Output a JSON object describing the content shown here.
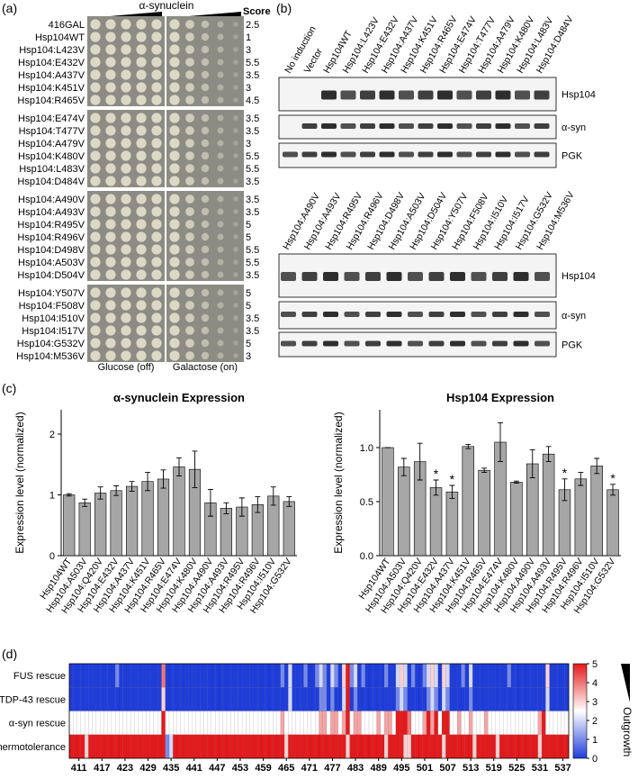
{
  "panel_a": {
    "label": "(a)",
    "title": "α-synuclein",
    "score_header": "Score",
    "conditions": [
      "Glucose (off)",
      "Galactose (on)"
    ],
    "strain_groups": [
      [
        {
          "name": "416GAL",
          "score": 2.5
        },
        {
          "name": "Hsp104WT",
          "score": 1
        },
        {
          "name": "Hsp104:L423V",
          "score": 3
        },
        {
          "name": "Hsp104:E432V",
          "score": 5.5
        },
        {
          "name": "Hsp104:A437V",
          "score": 3.5
        },
        {
          "name": "Hsp104:K451V",
          "score": 3
        },
        {
          "name": "Hsp104:R465V",
          "score": 4.5
        }
      ],
      [
        {
          "name": "Hsp104:E474V",
          "score": 3.5
        },
        {
          "name": "Hsp104:T477V",
          "score": 3.5
        },
        {
          "name": "Hsp104:A479V",
          "score": 3
        },
        {
          "name": "Hsp104:K480V",
          "score": 5.5
        },
        {
          "name": "Hsp104:L483V",
          "score": 5.5
        },
        {
          "name": "Hsp104:D484V",
          "score": 3.5
        }
      ],
      [
        {
          "name": "Hsp104:A490V",
          "score": 3.5
        },
        {
          "name": "Hsp104:A493V",
          "score": 3.5
        },
        {
          "name": "Hsp104:R495V",
          "score": 5
        },
        {
          "name": "Hsp104:R496V",
          "score": 5
        },
        {
          "name": "Hsp104:D498V",
          "score": 5.5
        },
        {
          "name": "Hsp104:A503V",
          "score": 5.5
        },
        {
          "name": "Hsp104:D504V",
          "score": 3.5
        }
      ],
      [
        {
          "name": "Hsp104:Y507V",
          "score": 5
        },
        {
          "name": "Hsp104:F508V",
          "score": 5
        },
        {
          "name": "Hsp104:I510V",
          "score": 3.5
        },
        {
          "name": "Hsp104:I517V",
          "score": 3.5
        },
        {
          "name": "Hsp104:G532V",
          "score": 5
        },
        {
          "name": "Hsp104:M536V",
          "score": 3
        }
      ]
    ]
  },
  "panel_b": {
    "label": "(b)",
    "blots": [
      {
        "lanes": [
          "No induction",
          "Vector",
          "Hsp104WT",
          "Hsp104:L423V",
          "Hsp104:E432V",
          "Hsp104:A437V",
          "Hsp104:K451V",
          "Hsp104:R465V",
          "Hsp104:E474V",
          "Hsp104:T477V",
          "Hsp104:A479V",
          "Hsp104:K480V",
          "Hsp104:L483V",
          "Hsp104:D484V"
        ],
        "bands": [
          "Hsp104",
          "α-syn",
          "PGK"
        ]
      },
      {
        "lanes": [
          "Hsp104:A490V",
          "Hsp104:A493V",
          "Hsp104:R495V",
          "Hsp104:R496V",
          "Hsp104:D498V",
          "Hsp104:A503V",
          "Hsp104:D504V",
          "Hsp104:Y507V",
          "Hsp104:F508V",
          "Hsp104:I510V",
          "Hsp104:I517V",
          "Hsp104:G532V",
          "Hsp104:M536V"
        ],
        "bands": [
          "Hsp104",
          "α-syn",
          "PGK"
        ]
      }
    ]
  },
  "panel_c_label": "(c)",
  "panel_d_label": "(d)",
  "chart_data": [
    {
      "type": "bar",
      "title": "α-synuclein Expression",
      "y_label": "Expression level (normalized)",
      "color": "#a6a6a6",
      "categories": [
        "Hsp104WT",
        "Hsp104:A503V",
        "Hsp104:Q420V",
        "Hsp104:E432V",
        "Hsp104:A437V",
        "Hsp104:K451V",
        "Hsp104:R465V",
        "Hsp104:E474V",
        "Hsp104:K480V",
        "Hsp104:A490V",
        "Hsp104:A493V",
        "Hsp104:R495V",
        "Hsp104:R496V",
        "Hsp104:I510V",
        "Hsp104:G532V"
      ],
      "values": [
        1.0,
        0.87,
        1.03,
        1.07,
        1.14,
        1.22,
        1.26,
        1.46,
        1.42,
        0.87,
        0.78,
        0.8,
        0.84,
        0.98,
        0.89
      ],
      "errors": [
        0.02,
        0.06,
        0.1,
        0.08,
        0.08,
        0.15,
        0.15,
        0.15,
        0.3,
        0.22,
        0.09,
        0.15,
        0.13,
        0.15,
        0.08
      ],
      "ylim": [
        0,
        2.4
      ],
      "yticks": [
        0,
        1,
        2
      ]
    },
    {
      "type": "bar",
      "title": "Hsp104 Expression",
      "y_label": "Expression level (normalized)",
      "color": "#a6a6a6",
      "categories": [
        "Hsp104WT",
        "Hsp104:A503V",
        "Hsp104:Q420V",
        "Hsp104:E432V",
        "Hsp104:A437V",
        "Hsp104:K451V",
        "Hsp104:R465V",
        "Hsp104:E474V",
        "Hsp104:K480V",
        "Hsp104:A490V",
        "Hsp104:A493V",
        "Hsp104:R495V",
        "Hsp104:R496V",
        "Hsp104:I510V",
        "Hsp104:G532V"
      ],
      "values": [
        1.0,
        0.82,
        0.87,
        0.63,
        0.59,
        1.01,
        0.79,
        1.05,
        0.68,
        0.85,
        0.94,
        0.61,
        0.71,
        0.83,
        0.61
      ],
      "errors": [
        0.0,
        0.08,
        0.17,
        0.07,
        0.06,
        0.02,
        0.02,
        0.18,
        0.01,
        0.13,
        0.07,
        0.1,
        0.06,
        0.07,
        0.05
      ],
      "annotations": [
        {
          "category": "Hsp104:E432V",
          "text": "*"
        },
        {
          "category": "Hsp104:A437V",
          "text": "*"
        },
        {
          "category": "Hsp104:R495V",
          "text": "*"
        },
        {
          "category": "Hsp104:G532V",
          "text": "*"
        }
      ],
      "ylim": [
        0,
        1.35
      ],
      "yticks": [
        {
          "value": 0,
          "label": "0.0"
        },
        {
          "value": 0.5,
          "label": "0.5"
        },
        {
          "value": 1,
          "label": "1.0"
        }
      ]
    },
    {
      "type": "heatmap",
      "rows": [
        "FUS rescue",
        "TDP-43 rescue",
        "α-syn rescue",
        "Thermotolerance"
      ],
      "x": [
        409,
        410,
        411,
        412,
        413,
        414,
        415,
        416,
        417,
        418,
        419,
        420,
        421,
        422,
        423,
        424,
        425,
        426,
        427,
        428,
        429,
        430,
        431,
        432,
        433,
        434,
        435,
        436,
        437,
        438,
        439,
        440,
        441,
        442,
        443,
        444,
        445,
        446,
        447,
        448,
        449,
        450,
        451,
        452,
        453,
        454,
        455,
        456,
        457,
        458,
        459,
        460,
        461,
        462,
        463,
        464,
        465,
        466,
        467,
        468,
        469,
        470,
        471,
        472,
        473,
        474,
        475,
        476,
        477,
        478,
        479,
        480,
        481,
        482,
        483,
        484,
        485,
        486,
        487,
        488,
        489,
        490,
        491,
        492,
        493,
        494,
        495,
        496,
        497,
        498,
        499,
        500,
        501,
        502,
        503,
        504,
        505,
        506,
        507,
        508,
        509,
        510,
        511,
        512,
        513,
        514,
        515,
        516,
        517,
        518,
        519,
        520,
        521,
        522,
        523,
        524,
        525,
        526,
        527,
        528,
        529,
        530,
        531,
        532,
        533,
        534,
        535,
        536,
        537,
        538
      ],
      "xlim": [
        408.5,
        538.5
      ],
      "xticks": [
        411,
        417,
        423,
        429,
        435,
        441,
        447,
        453,
        459,
        465,
        471,
        477,
        483,
        489,
        495,
        501,
        507,
        513,
        519,
        525,
        531,
        537
      ],
      "values": [
        [
          0,
          0,
          0,
          0,
          0,
          0,
          0,
          0,
          0,
          0,
          0,
          0,
          1,
          0,
          0,
          0,
          0,
          0,
          0,
          0,
          0,
          0,
          0,
          0,
          4,
          0,
          0,
          0,
          0,
          0,
          0,
          0,
          0,
          0,
          0,
          0,
          0,
          0,
          0,
          0,
          0,
          0,
          0,
          0,
          0,
          0,
          0,
          0,
          0,
          0,
          0,
          0,
          0,
          0,
          0,
          1,
          0,
          2,
          0,
          0,
          0,
          1,
          0,
          0,
          1,
          2,
          1,
          0,
          2,
          1,
          0,
          3,
          5,
          1,
          2,
          0,
          1,
          0,
          0,
          0,
          0,
          0,
          1,
          0,
          0,
          2,
          3,
          2,
          0,
          1,
          0,
          0,
          1,
          2,
          3,
          2,
          0,
          3,
          2,
          0,
          0,
          0,
          1,
          0,
          2,
          0,
          0,
          0,
          0,
          0,
          0,
          0,
          0,
          0,
          1,
          0,
          0,
          0,
          0,
          0,
          0,
          0,
          0,
          0,
          3,
          0,
          0,
          0,
          0,
          0
        ],
        [
          0,
          0,
          0,
          0,
          0,
          0,
          0,
          0,
          0,
          0,
          0,
          0,
          0,
          0,
          0,
          0,
          0,
          0,
          0,
          0,
          0,
          0,
          0,
          0,
          3,
          0,
          0,
          0,
          0,
          0,
          0,
          0,
          0,
          0,
          0,
          0,
          0,
          0,
          0,
          0,
          0,
          0,
          0,
          0,
          0,
          0,
          0,
          0,
          0,
          0,
          0,
          0,
          0,
          0,
          0,
          0,
          0,
          2,
          0,
          0,
          0,
          0,
          0,
          0,
          0,
          1,
          1,
          0,
          1,
          0,
          0,
          2,
          5,
          0,
          1,
          0,
          0,
          0,
          0,
          0,
          0,
          0,
          0,
          0,
          0,
          1,
          2,
          1,
          0,
          0,
          0,
          0,
          0,
          1,
          2,
          1,
          0,
          2,
          1,
          0,
          0,
          0,
          0,
          0,
          1,
          0,
          0,
          0,
          0,
          0,
          0,
          0,
          0,
          0,
          0,
          0,
          0,
          0,
          0,
          0,
          0,
          0,
          0,
          0,
          2,
          0,
          0,
          0,
          0,
          0
        ],
        [
          2.5,
          2.5,
          2.5,
          2.5,
          2.5,
          2.5,
          2.5,
          2.5,
          2.5,
          2.5,
          2.5,
          2.5,
          2.5,
          2.5,
          2.5,
          2.5,
          2.5,
          2.5,
          2.5,
          2.5,
          2.5,
          2.5,
          2.5,
          2.5,
          5,
          2.5,
          2.5,
          2.5,
          2.5,
          2.5,
          2.5,
          2.5,
          2.5,
          2.5,
          2.5,
          2.5,
          2.5,
          2.5,
          2.5,
          2.5,
          2.5,
          2.5,
          2.5,
          2.5,
          2.5,
          2.5,
          2.5,
          2.5,
          2.5,
          2.5,
          2.5,
          2.5,
          2.5,
          2.5,
          2.5,
          3.5,
          2.5,
          2.5,
          2.5,
          2.5,
          2.5,
          2.5,
          2.5,
          2.5,
          2.5,
          3.5,
          3.5,
          2.5,
          3.5,
          3.5,
          2.5,
          3.5,
          5,
          2.5,
          3.5,
          3.5,
          2.5,
          2.5,
          2.5,
          2.5,
          3.5,
          2.5,
          3.5,
          3.5,
          2.5,
          5,
          5,
          5,
          4,
          2.5,
          2.5,
          2.5,
          3.5,
          5,
          3.5,
          5,
          2.5,
          5,
          5,
          2.5,
          2.5,
          3.5,
          2.5,
          2.5,
          3.5,
          2.5,
          2.5,
          2.5,
          3.5,
          2.5,
          2.5,
          2.5,
          2.5,
          2.5,
          2.5,
          2.5,
          2.5,
          2.5,
          2.5,
          2.5,
          2.5,
          2.5,
          3.5,
          5,
          2.5,
          2.5,
          2.5,
          2.5,
          2.5,
          2.5
        ],
        [
          5,
          5,
          5,
          5,
          3,
          5,
          5,
          5,
          5,
          5,
          5,
          5,
          5,
          5,
          5,
          5,
          5,
          5,
          5,
          5,
          5,
          5,
          5,
          5,
          5,
          1,
          2,
          5,
          5,
          5,
          5,
          5,
          5,
          5,
          5,
          5,
          5,
          5,
          5,
          5,
          5,
          5,
          5,
          5,
          5,
          5,
          5,
          5,
          5,
          5,
          5,
          5,
          5,
          5,
          5,
          5,
          3,
          5,
          5,
          5,
          5,
          5,
          5,
          5,
          5,
          5,
          5,
          5,
          5,
          5,
          5,
          5,
          3,
          5,
          5,
          5,
          5,
          5,
          5,
          5,
          5,
          5,
          3,
          5,
          5,
          5,
          5,
          3,
          3,
          5,
          5,
          5,
          5,
          5,
          5,
          5,
          5,
          3,
          5,
          5,
          5,
          5,
          5,
          5,
          5,
          3,
          5,
          5,
          5,
          5,
          5,
          3,
          5,
          5,
          5,
          5,
          5,
          5,
          5,
          5,
          5,
          5,
          3,
          5,
          5,
          5,
          5,
          5,
          5,
          5
        ]
      ],
      "colors": [
        "#1f3ddb",
        "#ffffff",
        "#e41a1c"
      ],
      "colorbar": {
        "label": "Outgrowth",
        "lim": [
          0,
          5
        ],
        "ticks": [
          0,
          1,
          2,
          3,
          4,
          5
        ]
      }
    }
  ]
}
